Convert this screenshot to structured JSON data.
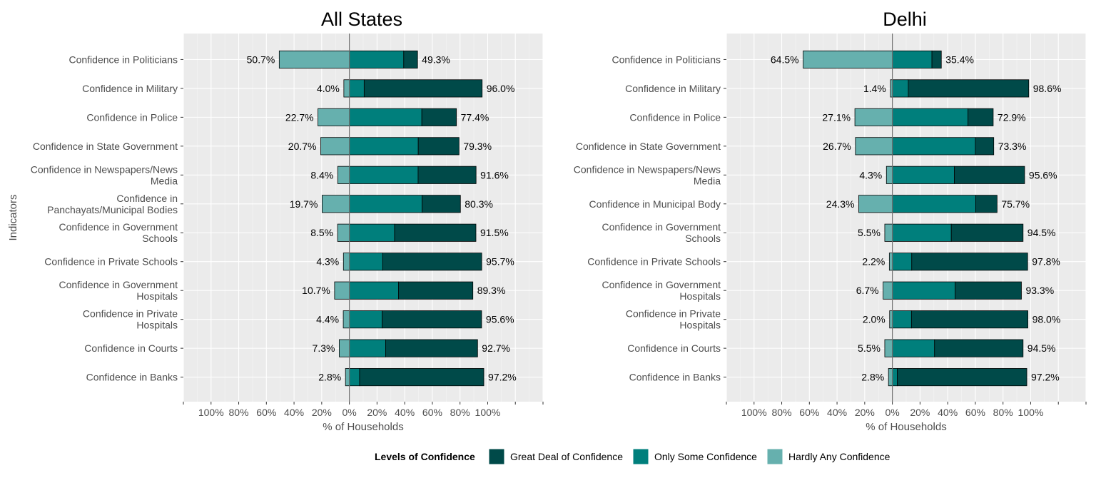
{
  "chart_data": [
    {
      "type": "bar",
      "orientation": "horizontal",
      "stacked": "diverging",
      "title": "All States",
      "xlabel": "% of Households",
      "ylabel": "Indicators",
      "xlim": [
        -120,
        140
      ],
      "x_ticks": [
        -100,
        -80,
        -60,
        -40,
        -20,
        0,
        20,
        40,
        60,
        80,
        100
      ],
      "x_tick_labels": [
        "100%",
        "80%",
        "60%",
        "40%",
        "20%",
        "0%",
        "20%",
        "40%",
        "60%",
        "80%",
        "100%"
      ],
      "grid": true,
      "categories": [
        "Confidence in Politicians",
        "Confidence in Military",
        "Confidence in Police",
        "Confidence in State Government",
        "Confidence in Newspapers/News Media",
        "Confidence in Panchayats/Municipal Bodies",
        "Confidence in Government Schools",
        "Confidence in Private Schools",
        "Confidence in Government Hospitals",
        "Confidence in Private Hospitals",
        "Confidence in Courts",
        "Confidence in Banks"
      ],
      "category_lines": [
        [
          "Confidence in Politicians"
        ],
        [
          "Confidence in Military"
        ],
        [
          "Confidence in Police"
        ],
        [
          "Confidence in State Government"
        ],
        [
          "Confidence in Newspapers/News",
          "Media"
        ],
        [
          "Confidence in",
          "Panchayats/Municipal Bodies"
        ],
        [
          "Confidence in Government",
          "Schools"
        ],
        [
          "Confidence in Private Schools"
        ],
        [
          "Confidence in Government",
          "Hospitals"
        ],
        [
          "Confidence in Private",
          "Hospitals"
        ],
        [
          "Confidence in Courts"
        ],
        [
          "Confidence in Banks"
        ]
      ],
      "series": [
        {
          "name": "Hardly Any Confidence",
          "values": [
            50.7,
            4.0,
            22.7,
            20.7,
            8.4,
            19.7,
            8.5,
            4.3,
            10.7,
            4.4,
            7.3,
            2.8
          ]
        },
        {
          "name": "Only Some Confidence",
          "values": [
            39.3,
            10.7,
            52.4,
            49.8,
            49.7,
            52.6,
            32.7,
            24.1,
            35.5,
            23.7,
            26.3,
            7.4
          ]
        },
        {
          "name": "Great Deal of Confidence",
          "values": [
            10.0,
            85.3,
            25.0,
            29.5,
            41.9,
            27.7,
            58.8,
            71.6,
            53.8,
            71.9,
            66.4,
            89.8
          ]
        }
      ],
      "labels_negative": [
        "50.7%",
        "4.0%",
        "22.7%",
        "20.7%",
        "8.4%",
        "19.7%",
        "8.5%",
        "4.3%",
        "10.7%",
        "4.4%",
        "7.3%",
        "2.8%"
      ],
      "labels_positive": [
        "49.3%",
        "96.0%",
        "77.4%",
        "79.3%",
        "91.6%",
        "80.3%",
        "91.5%",
        "95.7%",
        "89.3%",
        "95.6%",
        "92.7%",
        "97.2%"
      ]
    },
    {
      "type": "bar",
      "orientation": "horizontal",
      "stacked": "diverging",
      "title": "Delhi",
      "xlabel": "% of Households",
      "xlim": [
        -120,
        140
      ],
      "x_ticks": [
        -100,
        -80,
        -60,
        -40,
        -20,
        0,
        20,
        40,
        60,
        80,
        100
      ],
      "x_tick_labels": [
        "100%",
        "80%",
        "60%",
        "40%",
        "20%",
        "0%",
        "20%",
        "40%",
        "60%",
        "80%",
        "100%"
      ],
      "grid": true,
      "categories": [
        "Confidence in Politicians",
        "Confidence in Military",
        "Confidence in Police",
        "Confidence in State Government",
        "Confidence in Newspapers/News Media",
        "Confidence in Municipal Body",
        "Confidence in Government Schools",
        "Confidence in Private Schools",
        "Confidence in Government Hospitals",
        "Confidence in Private Hospitals",
        "Confidence in Courts",
        "Confidence in Banks"
      ],
      "category_lines": [
        [
          "Confidence in Politicians"
        ],
        [
          "Confidence in Military"
        ],
        [
          "Confidence in Police"
        ],
        [
          "Confidence in State Government"
        ],
        [
          "Confidence in Newspapers/News",
          "Media"
        ],
        [
          "Confidence in Municipal Body"
        ],
        [
          "Confidence in Government",
          "Schools"
        ],
        [
          "Confidence in Private Schools"
        ],
        [
          "Confidence in Government",
          "Hospitals"
        ],
        [
          "Confidence in Private",
          "Hospitals"
        ],
        [
          "Confidence in Courts"
        ],
        [
          "Confidence in Banks"
        ]
      ],
      "series": [
        {
          "name": "Hardly Any Confidence",
          "values": [
            64.5,
            1.4,
            27.1,
            26.7,
            4.3,
            24.3,
            5.5,
            2.2,
            6.7,
            2.0,
            5.5,
            2.8
          ]
        },
        {
          "name": "Only Some Confidence",
          "values": [
            28.6,
            11.5,
            54.7,
            60.0,
            44.8,
            60.3,
            42.6,
            14.0,
            45.3,
            13.8,
            30.5,
            3.6
          ]
        },
        {
          "name": "Great Deal of Confidence",
          "values": [
            6.8,
            87.1,
            18.2,
            13.3,
            50.8,
            15.4,
            51.9,
            83.8,
            48.0,
            84.2,
            64.0,
            93.6
          ]
        }
      ],
      "labels_negative": [
        "64.5%",
        "1.4%",
        "27.1%",
        "26.7%",
        "4.3%",
        "24.3%",
        "5.5%",
        "2.2%",
        "6.7%",
        "2.0%",
        "5.5%",
        "2.8%"
      ],
      "labels_positive": [
        "35.4%",
        "98.6%",
        "72.9%",
        "73.3%",
        "95.6%",
        "75.7%",
        "94.5%",
        "97.8%",
        "93.3%",
        "98.0%",
        "94.5%",
        "97.2%"
      ]
    }
  ],
  "legend": {
    "title": "Levels of Confidence",
    "position": "bottom",
    "items": [
      {
        "label": "Great Deal of Confidence",
        "color": "#004a49"
      },
      {
        "label": "Only Some Confidence",
        "color": "#007f7c"
      },
      {
        "label": "Hardly Any Confidence",
        "color": "#66b0ae"
      }
    ]
  },
  "colors": {
    "panel_background": "#ebebeb",
    "grid_major": "#ffffff",
    "grid_minor": "#f5f5f5",
    "zero_line": "#707070",
    "bar_outline": "#000000"
  }
}
